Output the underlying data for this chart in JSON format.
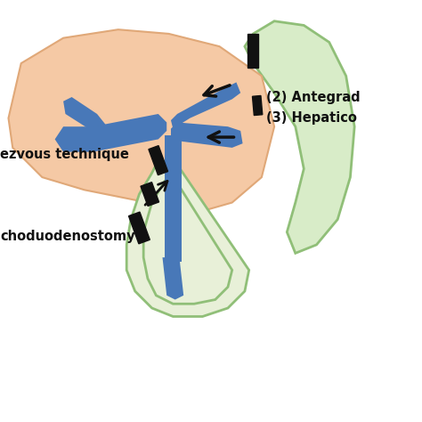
{
  "bg_color": "#ffffff",
  "liver_color": "#f5c9a5",
  "liver_edge": "#e0a878",
  "stomach_color": "#d8ecc8",
  "stomach_edge": "#90bf78",
  "duodenum_color": "#e8f0d8",
  "duodenum_edge": "#90bf78",
  "duct_color": "#4878b8",
  "stent_color": "#111111",
  "arrow_color": "#111111",
  "text_antegrada": "(2) Antegrad",
  "text_hepatico": "(3) Hepatico",
  "text_rendezvous": "ezvous technique",
  "text_choledocho": "choduodenostomy",
  "fontsize": 10.5,
  "fontweight": "bold"
}
